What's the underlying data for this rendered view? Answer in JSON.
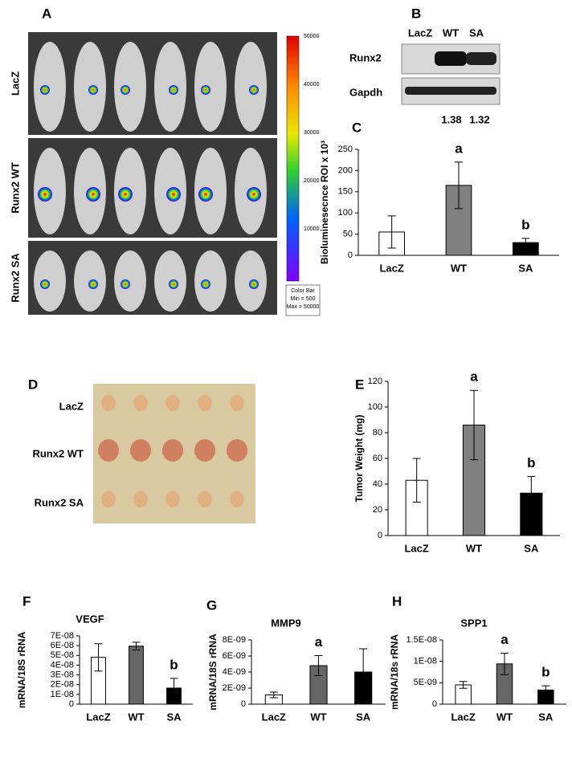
{
  "panels": {
    "A": {
      "label": "A",
      "rows": [
        "LacZ",
        "Runx2 WT",
        "Runx2 SA"
      ],
      "colorbar_ticks": [
        50000,
        40000,
        30000,
        20000,
        10000
      ],
      "colorbar_note": [
        "Color Bar",
        "Min = 500",
        "Max = 50000"
      ]
    },
    "B": {
      "label": "B",
      "lanes": [
        "LacZ",
        "WT",
        "SA"
      ],
      "rows": [
        "Runx2",
        "Gapdh"
      ],
      "ratios": [
        "1.38",
        "1.32"
      ]
    },
    "D": {
      "label": "D",
      "rows": [
        "LacZ",
        "Runx2 WT",
        "Runx2 SA"
      ]
    }
  },
  "chart_data": [
    {
      "type": "bar",
      "label": "C",
      "y_label": "Bioluminesecnce ROI x 10³",
      "categories": [
        "LacZ",
        "WT",
        "SA"
      ],
      "values": [
        55,
        165,
        30
      ],
      "errors": [
        38,
        55,
        10
      ],
      "colors": [
        "#ffffff",
        "#808080",
        "#000000"
      ],
      "ylim": [
        0,
        250
      ],
      "yticks": [
        0,
        50,
        100,
        150,
        200,
        250
      ],
      "annotations": [
        {
          "category": "WT",
          "text": "a"
        },
        {
          "category": "SA",
          "text": "b"
        }
      ]
    },
    {
      "type": "bar",
      "label": "E",
      "y_label": "Tumor Weight (mg)",
      "categories": [
        "LacZ",
        "WT",
        "SA"
      ],
      "values": [
        43,
        86,
        33
      ],
      "errors": [
        17,
        27,
        13
      ],
      "colors": [
        "#ffffff",
        "#808080",
        "#000000"
      ],
      "ylim": [
        0,
        120
      ],
      "yticks": [
        0,
        20,
        40,
        60,
        80,
        100,
        120
      ],
      "annotations": [
        {
          "category": "WT",
          "text": "a"
        },
        {
          "category": "SA",
          "text": "b"
        }
      ]
    },
    {
      "type": "bar",
      "label": "F",
      "title": "VEGF",
      "y_label": "mRNA/18S rRNA",
      "categories": [
        "LacZ",
        "WT",
        "SA"
      ],
      "values": [
        4.8e-08,
        5.95e-08,
        1.65e-08
      ],
      "errors": [
        1.4e-08,
        4e-09,
        1e-08
      ],
      "colors": [
        "#ffffff",
        "#666666",
        "#000000"
      ],
      "ylim": [
        0,
        7e-08
      ],
      "yticks": [
        0,
        {
          "value": 1e-08,
          "label": "1E-08"
        },
        {
          "value": 2e-08,
          "label": "2E-08"
        },
        {
          "value": 3e-08,
          "label": "3E-08"
        },
        {
          "value": 4e-08,
          "label": "4E-08"
        },
        {
          "value": 5e-08,
          "label": "5E-08"
        },
        {
          "value": 6e-08,
          "label": "6E-08"
        },
        {
          "value": 7e-08,
          "label": "7E-08"
        }
      ],
      "annotations": [
        {
          "category": "SA",
          "text": "b"
        }
      ]
    },
    {
      "type": "bar",
      "label": "G",
      "title": "MMP9",
      "y_label": "mRNA/18S rRNA",
      "categories": [
        "LacZ",
        "WT",
        "SA"
      ],
      "values": [
        1.15e-09,
        4.8e-09,
        4e-09
      ],
      "errors": [
        3.5e-10,
        1.25e-09,
        2.9e-09
      ],
      "colors": [
        "#ffffff",
        "#666666",
        "#000000"
      ],
      "ylim": [
        0,
        8e-09
      ],
      "yticks": [
        0,
        {
          "value": 2e-09,
          "label": "2E-09"
        },
        {
          "value": 4e-09,
          "label": "4E-09"
        },
        {
          "value": 6e-09,
          "label": "6E-09"
        },
        {
          "value": 8e-09,
          "label": "8E-09"
        }
      ],
      "annotations": [
        {
          "category": "WT",
          "text": "a"
        }
      ]
    },
    {
      "type": "bar",
      "label": "H",
      "title": "SPP1",
      "y_label": "mRNA/18s rRNA",
      "categories": [
        "LacZ",
        "WT",
        "SA"
      ],
      "values": [
        4.5e-09,
        9.4e-09,
        3.3e-09
      ],
      "errors": [
        8e-10,
        2.5e-09,
        1e-09
      ],
      "colors": [
        "#ffffff",
        "#666666",
        "#000000"
      ],
      "ylim": [
        0,
        1.5e-08
      ],
      "yticks": [
        0,
        {
          "value": 5e-09,
          "label": "5E-09"
        },
        {
          "value": 1e-08,
          "label": "1E-08"
        },
        {
          "value": 1.5e-08,
          "label": "1.5E-08"
        }
      ],
      "annotations": [
        {
          "category": "WT",
          "text": "a"
        },
        {
          "category": "SA",
          "text": "b"
        }
      ]
    }
  ]
}
